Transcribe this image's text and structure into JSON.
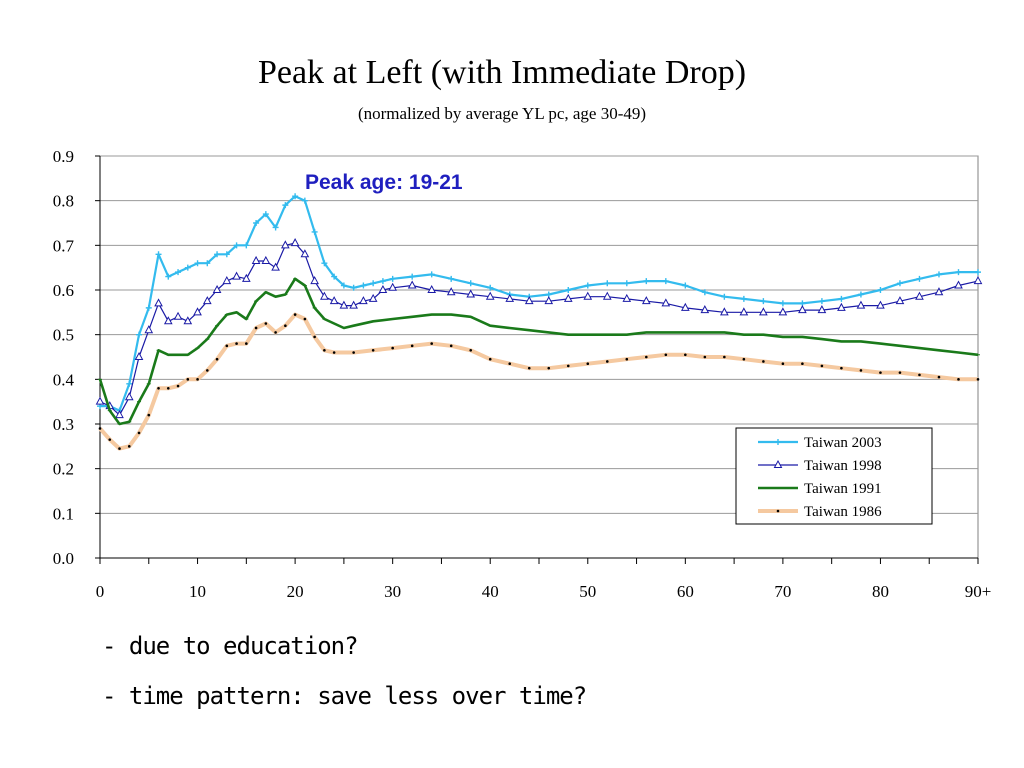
{
  "slide": {
    "title": "Peak at Left (with Immediate Drop)",
    "subtitle": "(normalized by average YL pc, age 30-49)",
    "notes": [
      "- due to education?",
      "- time pattern: save less over time?"
    ]
  },
  "chart_data": {
    "type": "line",
    "annotation": "Peak age: 19-21",
    "annotation_color": "#1f1fbf",
    "xlim": [
      0,
      90
    ],
    "ylim": [
      0,
      0.9
    ],
    "x_ticks": [
      "0",
      "10",
      "20",
      "30",
      "40",
      "50",
      "60",
      "70",
      "80",
      "90+"
    ],
    "y_ticks": [
      "0.0",
      "0.1",
      "0.2",
      "0.3",
      "0.4",
      "0.5",
      "0.6",
      "0.7",
      "0.8",
      "0.9"
    ],
    "grid": true,
    "legend_position": "bottom-right",
    "series": [
      {
        "name": "Taiwan 2003",
        "color": "#33bbee",
        "marker": "plus",
        "points": [
          [
            0,
            0.34
          ],
          [
            1,
            0.34
          ],
          [
            2,
            0.33
          ],
          [
            3,
            0.39
          ],
          [
            4,
            0.5
          ],
          [
            5,
            0.56
          ],
          [
            6,
            0.68
          ],
          [
            7,
            0.63
          ],
          [
            8,
            0.64
          ],
          [
            9,
            0.65
          ],
          [
            10,
            0.66
          ],
          [
            11,
            0.66
          ],
          [
            12,
            0.68
          ],
          [
            13,
            0.68
          ],
          [
            14,
            0.7
          ],
          [
            15,
            0.7
          ],
          [
            16,
            0.75
          ],
          [
            17,
            0.77
          ],
          [
            18,
            0.74
          ],
          [
            19,
            0.79
          ],
          [
            20,
            0.81
          ],
          [
            21,
            0.8
          ],
          [
            22,
            0.73
          ],
          [
            23,
            0.66
          ],
          [
            24,
            0.63
          ],
          [
            25,
            0.61
          ],
          [
            26,
            0.605
          ],
          [
            27,
            0.61
          ],
          [
            28,
            0.615
          ],
          [
            29,
            0.62
          ],
          [
            30,
            0.625
          ],
          [
            32,
            0.63
          ],
          [
            34,
            0.635
          ],
          [
            36,
            0.625
          ],
          [
            38,
            0.615
          ],
          [
            40,
            0.605
          ],
          [
            42,
            0.59
          ],
          [
            44,
            0.585
          ],
          [
            46,
            0.59
          ],
          [
            48,
            0.6
          ],
          [
            50,
            0.61
          ],
          [
            52,
            0.615
          ],
          [
            54,
            0.615
          ],
          [
            56,
            0.62
          ],
          [
            58,
            0.62
          ],
          [
            60,
            0.61
          ],
          [
            62,
            0.595
          ],
          [
            64,
            0.585
          ],
          [
            66,
            0.58
          ],
          [
            68,
            0.575
          ],
          [
            70,
            0.57
          ],
          [
            72,
            0.57
          ],
          [
            74,
            0.575
          ],
          [
            76,
            0.58
          ],
          [
            78,
            0.59
          ],
          [
            80,
            0.6
          ],
          [
            82,
            0.615
          ],
          [
            84,
            0.625
          ],
          [
            86,
            0.635
          ],
          [
            88,
            0.64
          ],
          [
            90,
            0.64
          ]
        ]
      },
      {
        "name": "Taiwan 1998",
        "color": "#1a1aa6",
        "marker": "triangle",
        "points": [
          [
            0,
            0.35
          ],
          [
            1,
            0.34
          ],
          [
            2,
            0.32
          ],
          [
            3,
            0.36
          ],
          [
            4,
            0.45
          ],
          [
            5,
            0.51
          ],
          [
            6,
            0.57
          ],
          [
            7,
            0.53
          ],
          [
            8,
            0.54
          ],
          [
            9,
            0.53
          ],
          [
            10,
            0.55
          ],
          [
            11,
            0.575
          ],
          [
            12,
            0.6
          ],
          [
            13,
            0.62
          ],
          [
            14,
            0.63
          ],
          [
            15,
            0.625
          ],
          [
            16,
            0.665
          ],
          [
            17,
            0.665
          ],
          [
            18,
            0.65
          ],
          [
            19,
            0.7
          ],
          [
            20,
            0.705
          ],
          [
            21,
            0.68
          ],
          [
            22,
            0.62
          ],
          [
            23,
            0.585
          ],
          [
            24,
            0.575
          ],
          [
            25,
            0.565
          ],
          [
            26,
            0.565
          ],
          [
            27,
            0.575
          ],
          [
            28,
            0.58
          ],
          [
            29,
            0.6
          ],
          [
            30,
            0.605
          ],
          [
            32,
            0.61
          ],
          [
            34,
            0.6
          ],
          [
            36,
            0.595
          ],
          [
            38,
            0.59
          ],
          [
            40,
            0.585
          ],
          [
            42,
            0.58
          ],
          [
            44,
            0.575
          ],
          [
            46,
            0.575
          ],
          [
            48,
            0.58
          ],
          [
            50,
            0.585
          ],
          [
            52,
            0.585
          ],
          [
            54,
            0.58
          ],
          [
            56,
            0.575
          ],
          [
            58,
            0.57
          ],
          [
            60,
            0.56
          ],
          [
            62,
            0.555
          ],
          [
            64,
            0.55
          ],
          [
            66,
            0.55
          ],
          [
            68,
            0.55
          ],
          [
            70,
            0.55
          ],
          [
            72,
            0.555
          ],
          [
            74,
            0.555
          ],
          [
            76,
            0.56
          ],
          [
            78,
            0.565
          ],
          [
            80,
            0.565
          ],
          [
            82,
            0.575
          ],
          [
            84,
            0.585
          ],
          [
            86,
            0.595
          ],
          [
            88,
            0.61
          ],
          [
            90,
            0.62
          ]
        ]
      },
      {
        "name": "Taiwan 1991",
        "color": "#1a7a1a",
        "marker": "dash",
        "points": [
          [
            0,
            0.4
          ],
          [
            1,
            0.33
          ],
          [
            2,
            0.3
          ],
          [
            3,
            0.305
          ],
          [
            4,
            0.35
          ],
          [
            5,
            0.39
          ],
          [
            6,
            0.465
          ],
          [
            7,
            0.455
          ],
          [
            8,
            0.455
          ],
          [
            9,
            0.455
          ],
          [
            10,
            0.47
          ],
          [
            11,
            0.49
          ],
          [
            12,
            0.52
          ],
          [
            13,
            0.545
          ],
          [
            14,
            0.55
          ],
          [
            15,
            0.535
          ],
          [
            16,
            0.575
          ],
          [
            17,
            0.595
          ],
          [
            18,
            0.585
          ],
          [
            19,
            0.59
          ],
          [
            20,
            0.625
          ],
          [
            21,
            0.61
          ],
          [
            22,
            0.56
          ],
          [
            23,
            0.535
          ],
          [
            24,
            0.525
          ],
          [
            25,
            0.515
          ],
          [
            26,
            0.52
          ],
          [
            28,
            0.53
          ],
          [
            30,
            0.535
          ],
          [
            32,
            0.54
          ],
          [
            34,
            0.545
          ],
          [
            36,
            0.545
          ],
          [
            38,
            0.54
          ],
          [
            40,
            0.52
          ],
          [
            42,
            0.515
          ],
          [
            44,
            0.51
          ],
          [
            46,
            0.505
          ],
          [
            48,
            0.5
          ],
          [
            50,
            0.5
          ],
          [
            52,
            0.5
          ],
          [
            54,
            0.5
          ],
          [
            56,
            0.505
          ],
          [
            58,
            0.505
          ],
          [
            60,
            0.505
          ],
          [
            62,
            0.505
          ],
          [
            64,
            0.505
          ],
          [
            66,
            0.5
          ],
          [
            68,
            0.5
          ],
          [
            70,
            0.495
          ],
          [
            72,
            0.495
          ],
          [
            74,
            0.49
          ],
          [
            76,
            0.485
          ],
          [
            78,
            0.485
          ],
          [
            80,
            0.48
          ],
          [
            82,
            0.475
          ],
          [
            84,
            0.47
          ],
          [
            86,
            0.465
          ],
          [
            88,
            0.46
          ],
          [
            90,
            0.455
          ]
        ]
      },
      {
        "name": "Taiwan 1986",
        "color": "#f5c9a0",
        "marker": "dot",
        "points": [
          [
            0,
            0.29
          ],
          [
            1,
            0.265
          ],
          [
            2,
            0.245
          ],
          [
            3,
            0.25
          ],
          [
            4,
            0.28
          ],
          [
            5,
            0.32
          ],
          [
            6,
            0.38
          ],
          [
            7,
            0.38
          ],
          [
            8,
            0.385
          ],
          [
            9,
            0.4
          ],
          [
            10,
            0.4
          ],
          [
            11,
            0.42
          ],
          [
            12,
            0.445
          ],
          [
            13,
            0.475
          ],
          [
            14,
            0.48
          ],
          [
            15,
            0.48
          ],
          [
            16,
            0.515
          ],
          [
            17,
            0.525
          ],
          [
            18,
            0.505
          ],
          [
            19,
            0.52
          ],
          [
            20,
            0.545
          ],
          [
            21,
            0.535
          ],
          [
            22,
            0.495
          ],
          [
            23,
            0.465
          ],
          [
            24,
            0.46
          ],
          [
            26,
            0.46
          ],
          [
            28,
            0.465
          ],
          [
            30,
            0.47
          ],
          [
            32,
            0.475
          ],
          [
            34,
            0.48
          ],
          [
            36,
            0.475
          ],
          [
            38,
            0.465
          ],
          [
            40,
            0.445
          ],
          [
            42,
            0.435
          ],
          [
            44,
            0.425
          ],
          [
            46,
            0.425
          ],
          [
            48,
            0.43
          ],
          [
            50,
            0.435
          ],
          [
            52,
            0.44
          ],
          [
            54,
            0.445
          ],
          [
            56,
            0.45
          ],
          [
            58,
            0.455
          ],
          [
            60,
            0.455
          ],
          [
            62,
            0.45
          ],
          [
            64,
            0.45
          ],
          [
            66,
            0.445
          ],
          [
            68,
            0.44
          ],
          [
            70,
            0.435
          ],
          [
            72,
            0.435
          ],
          [
            74,
            0.43
          ],
          [
            76,
            0.425
          ],
          [
            78,
            0.42
          ],
          [
            80,
            0.415
          ],
          [
            82,
            0.415
          ],
          [
            84,
            0.41
          ],
          [
            86,
            0.405
          ],
          [
            88,
            0.4
          ],
          [
            90,
            0.4
          ]
        ]
      }
    ]
  }
}
